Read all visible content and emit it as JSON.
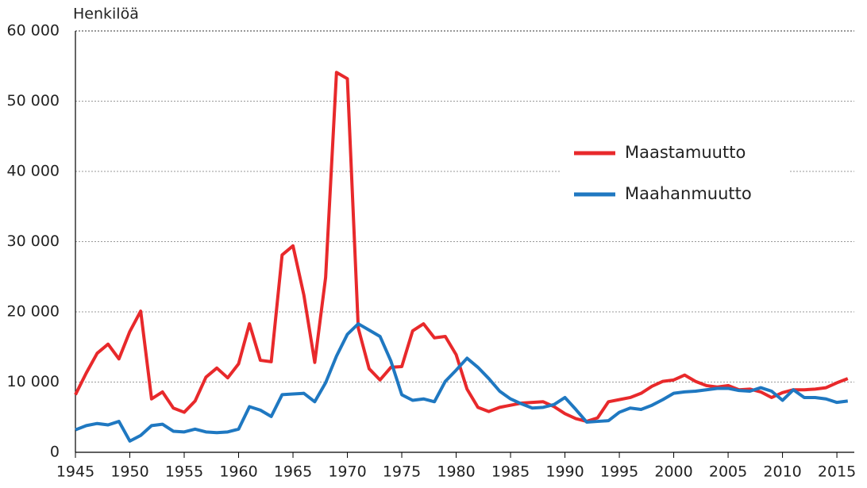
{
  "chart_data": {
    "type": "line",
    "y_label": "Henkilöä",
    "x": [
      1945,
      1946,
      1947,
      1948,
      1949,
      1950,
      1951,
      1952,
      1953,
      1954,
      1955,
      1956,
      1957,
      1958,
      1959,
      1960,
      1961,
      1962,
      1963,
      1964,
      1965,
      1966,
      1967,
      1968,
      1969,
      1970,
      1971,
      1972,
      1973,
      1974,
      1975,
      1976,
      1977,
      1978,
      1979,
      1980,
      1981,
      1982,
      1983,
      1984,
      1985,
      1986,
      1987,
      1988,
      1989,
      1990,
      1991,
      1992,
      1993,
      1994,
      1995,
      1996,
      1997,
      1998,
      1999,
      2000,
      2001,
      2002,
      2003,
      2004,
      2005,
      2006,
      2007,
      2008,
      2009,
      2010,
      2011,
      2012,
      2013,
      2014,
      2015,
      2016
    ],
    "series": [
      {
        "name": "Maastamuutto",
        "color": "#e8292b",
        "values": [
          8200,
          11300,
          14100,
          15400,
          13300,
          17200,
          20100,
          7600,
          8600,
          6300,
          5700,
          7300,
          10700,
          12000,
          10600,
          12600,
          18300,
          13100,
          12900,
          28100,
          29400,
          22400,
          12800,
          24900,
          54100,
          53200,
          17700,
          11900,
          10300,
          12100,
          12200,
          17300,
          18300,
          16300,
          16500,
          13900,
          9000,
          6400,
          5800,
          6400,
          6700,
          7000,
          7100,
          7200,
          6500,
          5500,
          4800,
          4400,
          4900,
          7200,
          7500,
          7800,
          8400,
          9400,
          10100,
          10300,
          11000,
          10100,
          9500,
          9300,
          9500,
          8900,
          9000,
          8600,
          7800,
          8500,
          8900,
          8900,
          9000,
          9200,
          9900,
          10500
        ]
      },
      {
        "name": "Maahanmuutto",
        "color": "#1f78c1",
        "values": [
          3200,
          3800,
          4100,
          3900,
          4400,
          1600,
          2400,
          3800,
          4000,
          3000,
          2900,
          3300,
          2900,
          2800,
          2900,
          3300,
          6500,
          6000,
          5100,
          8200,
          8300,
          8400,
          7200,
          9900,
          13700,
          16800,
          18300,
          17400,
          16500,
          13000,
          8200,
          7400,
          7600,
          7200,
          10100,
          11700,
          13400,
          12100,
          10500,
          8700,
          7600,
          6900,
          6300,
          6400,
          6800,
          7800,
          6100,
          4300,
          4400,
          4500,
          5700,
          6300,
          6100,
          6700,
          7500,
          8400,
          8600,
          8700,
          8900,
          9100,
          9100,
          8800,
          8700,
          9200,
          8700,
          7400,
          8900,
          7800,
          7800,
          7600,
          7100,
          7300
        ]
      }
    ],
    "xlim": [
      1945,
      2016.6
    ],
    "xticks": [
      1945,
      1950,
      1955,
      1960,
      1965,
      1970,
      1975,
      1980,
      1985,
      1990,
      1995,
      2000,
      2005,
      2010,
      2015
    ],
    "ylim": [
      0,
      60000
    ],
    "yticks": [
      0,
      {
        "value": 10000,
        "label": "10 000"
      },
      {
        "value": 20000,
        "label": "20 000"
      },
      {
        "value": 30000,
        "label": "30 000"
      },
      {
        "value": 40000,
        "label": "40 000"
      },
      {
        "value": 50000,
        "label": "50 000"
      },
      {
        "value": 60000,
        "label": "60 000"
      }
    ],
    "grid": true,
    "legend_position": "right"
  }
}
